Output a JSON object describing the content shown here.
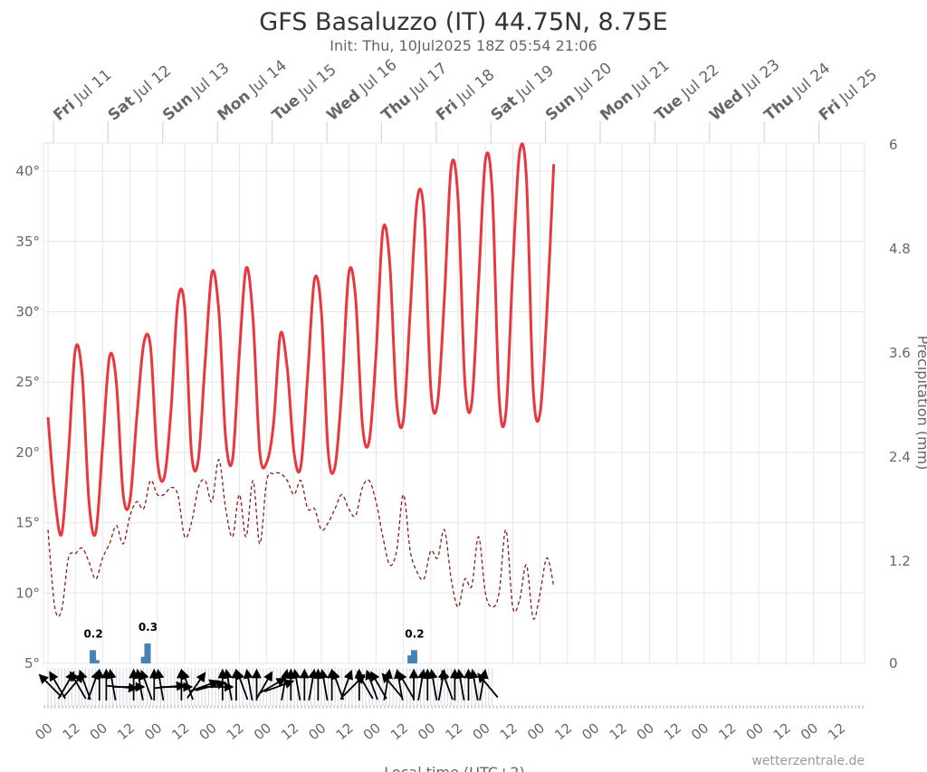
{
  "header": {
    "title": "GFS Basaluzzo (IT) 44.75N, 8.75E",
    "subtitle": "Init: Thu, 10Jul2025 18Z 05:54 21:06"
  },
  "credits": "wetterzentrale.de",
  "colors": {
    "temperature": "#e8383d",
    "dewpoint": "#8b1a1a",
    "precipitation": "#4682b4",
    "grid": "#e6e6e6",
    "day_line": "#ccd6eb"
  },
  "chart_data": {
    "type": "line",
    "x_start": "2025-07-11T00:00",
    "x_step_hours": 3,
    "day_labels": [
      {
        "dow": "Fri",
        "date": "Jul 11"
      },
      {
        "dow": "Sat",
        "date": "Jul 12"
      },
      {
        "dow": "Sun",
        "date": "Jul 13"
      },
      {
        "dow": "Mon",
        "date": "Jul 14"
      },
      {
        "dow": "Tue",
        "date": "Jul 15"
      },
      {
        "dow": "Wed",
        "date": "Jul 16"
      },
      {
        "dow": "Thu",
        "date": "Jul 17"
      },
      {
        "dow": "Fri",
        "date": "Jul 18"
      },
      {
        "dow": "Sat",
        "date": "Jul 19"
      },
      {
        "dow": "Sun",
        "date": "Jul 20"
      },
      {
        "dow": "Mon",
        "date": "Jul 21"
      },
      {
        "dow": "Tue",
        "date": "Jul 22"
      },
      {
        "dow": "Wed",
        "date": "Jul 23"
      },
      {
        "dow": "Thu",
        "date": "Jul 24"
      },
      {
        "dow": "Fri",
        "date": "Jul 25"
      }
    ],
    "x_tick_labels": [
      "00",
      "12",
      "00",
      "12",
      "00",
      "12",
      "00",
      "12",
      "00",
      "12",
      "00",
      "12",
      "00",
      "12",
      "00",
      "12",
      "00",
      "12",
      "00",
      "12",
      "00",
      "12",
      "00",
      "12",
      "00",
      "12",
      "00",
      "12",
      "00",
      "12"
    ],
    "xlabel": "Local time (UTC+2)",
    "y_left": {
      "ticks": [
        "5°",
        "10°",
        "15°",
        "20°",
        "25°",
        "30°",
        "35°",
        "40°"
      ],
      "min": 5,
      "max": 42
    },
    "y_right": {
      "label": "Precipitation (mm)",
      "ticks": [
        "0",
        "1.2",
        "2.4",
        "3.6",
        "4.8",
        "6"
      ],
      "min": 0,
      "max": 6
    },
    "series": [
      {
        "name": "Temperature",
        "unit": "°C",
        "values": [
          22.5,
          16.8,
          14.2,
          20,
          27.3,
          25.5,
          16.5,
          14.3,
          20.5,
          26.8,
          25,
          17,
          16.6,
          22.5,
          27.7,
          27.5,
          19.5,
          18.2,
          23,
          30.7,
          30.3,
          20,
          19.5,
          26.5,
          32.8,
          30,
          21,
          19.5,
          27,
          33.1,
          29.5,
          20,
          19.3,
          22,
          28.4,
          26,
          20,
          19,
          25.5,
          32.3,
          30,
          20,
          19,
          24.5,
          32.7,
          31,
          22,
          20.8,
          27,
          35.8,
          33.5,
          23.6,
          22.3,
          30,
          37.9,
          37,
          24.6,
          23.5,
          31,
          40.3,
          38,
          25,
          23.5,
          32,
          40.8,
          38.5,
          24,
          22.8,
          33,
          41.3,
          39.5,
          24.5,
          22.8,
          30,
          40.5
        ]
      },
      {
        "name": "Dew point",
        "unit": "°C",
        "values": [
          14.5,
          9,
          8.8,
          12.5,
          12.8,
          13.2,
          12.2,
          11,
          12.5,
          13.5,
          14.8,
          13.5,
          15.5,
          16.5,
          16,
          18,
          17,
          17,
          17.5,
          17,
          14,
          15,
          17.5,
          18,
          16.5,
          19.5,
          16,
          14,
          17,
          14,
          18,
          13.5,
          18,
          18.5,
          18.5,
          18,
          17,
          18,
          16,
          16,
          14.5,
          15,
          16,
          17,
          16,
          15.5,
          17.5,
          18,
          16.5,
          14,
          12,
          13,
          17,
          13,
          11.5,
          11,
          13,
          12.5,
          14.5,
          11,
          9,
          11,
          10.5,
          14,
          10,
          9,
          10,
          14.5,
          9,
          9.5,
          12,
          8.2,
          10,
          12.5,
          10.5
        ]
      },
      {
        "name": "Precipitation",
        "unit": "mm",
        "type": "column",
        "bars": [
          {
            "index": 6.5,
            "value": 0.2,
            "label": "0.2"
          },
          {
            "index": 7,
            "value": 0.05,
            "label": ""
          },
          {
            "index": 14,
            "value": 0.1,
            "label": ""
          },
          {
            "index": 14.5,
            "value": 0.3,
            "label": "0.3"
          },
          {
            "index": 53,
            "value": 0.12,
            "label": ""
          },
          {
            "index": 53.5,
            "value": 0.2,
            "label": "0.2"
          }
        ]
      },
      {
        "name": "Wind direction",
        "type": "vectors",
        "directions_deg": [
          315,
          330,
          30,
          40,
          330,
          340,
          20,
          0,
          0,
          350,
          95,
          90,
          0,
          350,
          340,
          0,
          350,
          85,
          90,
          0,
          340,
          35,
          70,
          75,
          90,
          0,
          350,
          0,
          340,
          350,
          0,
          30,
          60,
          70,
          10,
          0,
          350,
          0,
          10,
          0,
          350,
          0,
          340,
          20,
          45,
          0,
          330,
          340,
          330,
          10,
          320,
          350,
          330,
          0,
          10,
          0,
          350,
          10,
          340,
          0,
          350,
          0,
          350,
          10,
          320
        ]
      }
    ],
    "legend": "none"
  }
}
